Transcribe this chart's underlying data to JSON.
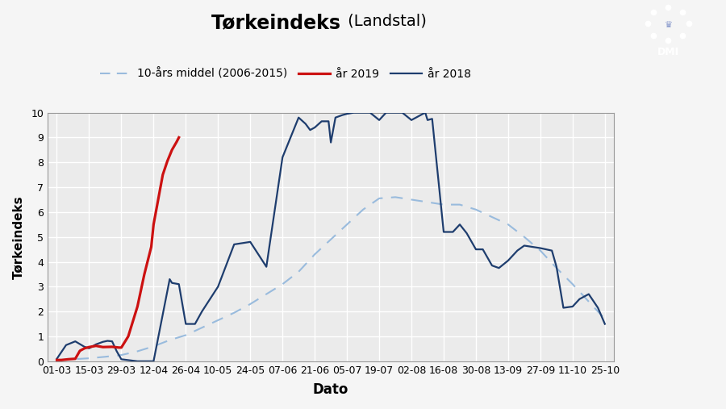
{
  "title_main": "Tørkeindeks",
  "title_sub": " (Landstal)",
  "ylabel": "Tørkeindeks",
  "xlabel": "Dato",
  "ylim": [
    0,
    10
  ],
  "yticks": [
    0,
    1,
    2,
    3,
    4,
    5,
    6,
    7,
    8,
    9,
    10
  ],
  "xtick_labels": [
    "01-03",
    "15-03",
    "29-03",
    "12-04",
    "26-04",
    "10-05",
    "24-05",
    "07-06",
    "21-06",
    "05-07",
    "19-07",
    "02-08",
    "16-08",
    "30-08",
    "13-09",
    "27-09",
    "11-10",
    "25-10"
  ],
  "tick_days": [
    0,
    14,
    28,
    42,
    56,
    70,
    84,
    98,
    112,
    126,
    140,
    154,
    168,
    182,
    196,
    210,
    224,
    238
  ],
  "fig_bg": "#f5f5f5",
  "ax_bg": "#ebebeb",
  "grid_color": "#ffffff",
  "line2018_color": "#1e3d6e",
  "line2019_color": "#cc1111",
  "line_mean_color": "#99bbdd",
  "legend_mean": "10-års middel (2006-2015)",
  "legend_2019": "år 2019",
  "legend_2018": "år 2018",
  "dmi_bg": "#1a3a8a",
  "xlim": [
    -4,
    242
  ],
  "x_mean": [
    0,
    7,
    14,
    21,
    28,
    35,
    42,
    49,
    56,
    63,
    70,
    77,
    84,
    91,
    98,
    105,
    112,
    119,
    126,
    133,
    140,
    147,
    154,
    161,
    168,
    175,
    182,
    189,
    196,
    203,
    210,
    217,
    224,
    231,
    238
  ],
  "y_mean": [
    0.05,
    0.08,
    0.12,
    0.18,
    0.25,
    0.4,
    0.6,
    0.85,
    1.05,
    1.35,
    1.65,
    1.95,
    2.3,
    2.7,
    3.1,
    3.6,
    4.3,
    4.9,
    5.5,
    6.1,
    6.55,
    6.6,
    6.5,
    6.4,
    6.3,
    6.3,
    6.1,
    5.8,
    5.5,
    5.0,
    4.45,
    3.75,
    3.1,
    2.4,
    1.7
  ],
  "x2018": [
    0,
    4,
    8,
    12,
    14,
    17,
    20,
    22,
    24,
    26,
    28,
    35,
    42,
    49,
    50,
    53,
    56,
    60,
    63,
    70,
    77,
    84,
    91,
    98,
    105,
    108,
    110,
    112,
    115,
    118,
    119,
    121,
    124,
    126,
    129,
    132,
    133,
    136,
    140,
    143,
    147,
    150,
    154,
    156,
    160,
    161,
    163,
    168,
    172,
    175,
    178,
    182,
    185,
    189,
    192,
    196,
    200,
    203,
    210,
    215,
    217,
    220,
    224,
    227,
    231,
    235,
    238
  ],
  "y2018": [
    0.1,
    0.65,
    0.8,
    0.58,
    0.52,
    0.68,
    0.78,
    0.82,
    0.8,
    0.4,
    0.08,
    0.0,
    0.0,
    3.3,
    3.15,
    3.1,
    1.5,
    1.5,
    2.0,
    3.0,
    4.7,
    4.8,
    3.8,
    8.2,
    9.8,
    9.55,
    9.3,
    9.4,
    9.65,
    9.65,
    8.8,
    9.8,
    9.9,
    9.95,
    10.0,
    10.0,
    10.0,
    10.0,
    9.7,
    10.0,
    10.0,
    10.0,
    9.7,
    9.8,
    10.0,
    9.7,
    9.75,
    5.2,
    5.2,
    5.5,
    5.15,
    4.5,
    4.5,
    3.85,
    3.75,
    4.05,
    4.45,
    4.65,
    4.55,
    4.45,
    3.8,
    2.15,
    2.2,
    2.5,
    2.7,
    2.15,
    1.5
  ],
  "x2019": [
    0,
    2,
    5,
    8,
    10,
    12,
    14,
    17,
    20,
    24,
    27,
    28,
    31,
    35,
    38,
    41,
    42,
    44,
    46,
    48,
    50,
    52,
    53
  ],
  "y2019": [
    0.05,
    0.05,
    0.08,
    0.1,
    0.42,
    0.52,
    0.57,
    0.62,
    0.57,
    0.58,
    0.55,
    0.55,
    1.0,
    2.2,
    3.5,
    4.6,
    5.5,
    6.5,
    7.5,
    8.05,
    8.5,
    8.82,
    9.0
  ]
}
